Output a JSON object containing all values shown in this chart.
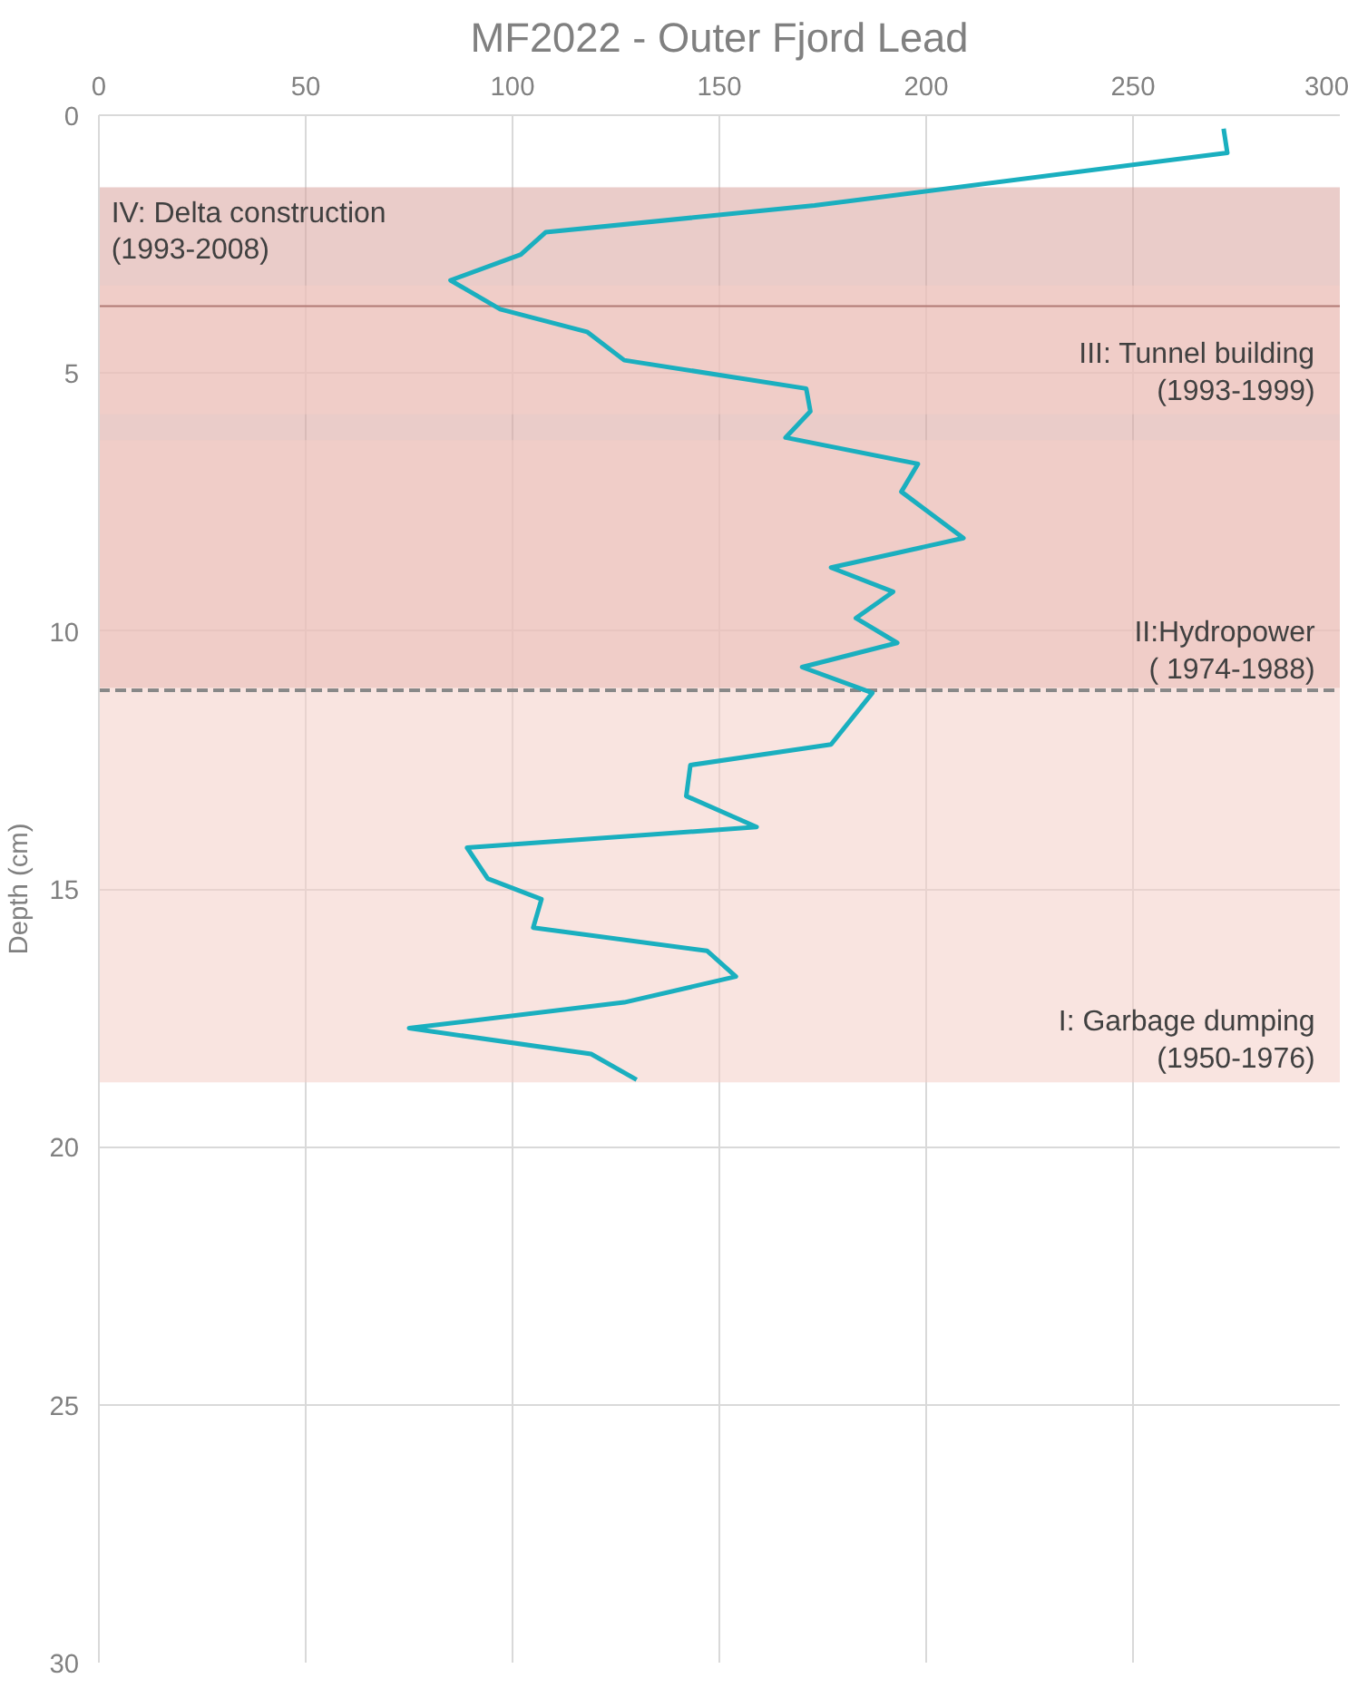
{
  "chart_data": {
    "type": "line",
    "title": "MF2022 - Outer Fjord Lead",
    "ylabel": "Depth (cm)",
    "xlim": [
      0,
      300
    ],
    "xticks": [
      0,
      50,
      100,
      150,
      200,
      250,
      300
    ],
    "ylim": [
      30,
      0
    ],
    "yticks": [
      0,
      5,
      10,
      15,
      20,
      25,
      30
    ],
    "grid": true,
    "series": [
      {
        "color": "#1aafbf",
        "x": [
          271.9,
          272.8,
          173,
          108,
          102,
          85,
          97,
          118,
          127,
          171,
          172,
          166,
          198,
          194,
          209,
          177,
          192,
          183,
          193,
          170,
          187,
          177,
          143,
          142,
          159,
          89,
          94,
          107,
          105,
          147,
          154,
          127,
          75,
          119,
          130
        ],
        "values": [
          0.26,
          0.73,
          1.75,
          2.27,
          2.7,
          3.2,
          3.76,
          4.2,
          4.75,
          5.3,
          5.74,
          6.25,
          6.76,
          7.3,
          8.2,
          8.77,
          9.24,
          9.75,
          10.23,
          10.7,
          11.2,
          12.2,
          12.6,
          13.2,
          13.8,
          14.2,
          14.8,
          15.2,
          15.75,
          16.2,
          16.7,
          17.2,
          17.7,
          18.2,
          18.7
        ]
      }
    ],
    "bands": [
      {
        "axis": "y",
        "from": 1.4,
        "to": 11.1,
        "label": "IV: Delta construction\n(1993-2008)",
        "color": "#d9a39d"
      },
      {
        "axis": "y",
        "from": 3.3,
        "to": 5.8,
        "label": "III: Tunnel building\n(1993-1999)",
        "color": "#f4cdc7"
      },
      {
        "axis": "y",
        "from": 6.3,
        "to": 11.2,
        "label": "II:Hydropower\n( 1974-1988)",
        "color": "#f4cdc7"
      },
      {
        "axis": "y",
        "from": 11.2,
        "to": 18.75,
        "label": "I: Garbage dumping\n(1950-1976)",
        "color": "#f4cdc7"
      }
    ],
    "ref_lines": [
      {
        "axis": "y",
        "value": 11.15,
        "label": null,
        "color": "#888888",
        "line_style": "dashed"
      },
      {
        "axis": "y",
        "value": 3.7,
        "label": null,
        "color": "#b07a74",
        "line_style": "solid"
      }
    ]
  }
}
